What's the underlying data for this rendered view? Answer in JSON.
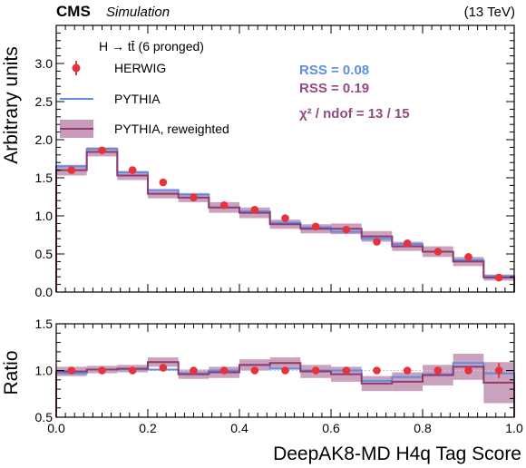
{
  "chart_data": {
    "type": "step-histogram-with-ratio",
    "header": {
      "experiment": "CMS",
      "tag": "Simulation",
      "energy": "(13 TeV)"
    },
    "legend": {
      "title": "H → tt̄ (6 pronged)",
      "entries": [
        "HERWIG",
        "PYTHIA",
        "PYTHIA, reweighted"
      ],
      "placement": "top-left"
    },
    "stats": {
      "rss_pythia": "RSS = 0.08",
      "rss_reweighted": "RSS = 0.19",
      "chi2": "χ² / ndof = 13 / 15"
    },
    "xlabel": "DeepAK8-MD H4q Tag Score",
    "ylabel_main": "Arbitrary units",
    "ylabel_ratio": "Ratio",
    "xlim": [
      0,
      1
    ],
    "ylim_main": [
      0,
      3.5
    ],
    "ylim_ratio": [
      0.5,
      1.5
    ],
    "x_ticks": [
      "0.0",
      "0.2",
      "0.4",
      "0.6",
      "0.8",
      "1.0"
    ],
    "y_ticks_main": [
      "0.0",
      "0.5",
      "1.0",
      "1.5",
      "2.0",
      "2.5",
      "3.0"
    ],
    "y_ticks_ratio": [
      "0.5",
      "1.0",
      "1.5"
    ],
    "bin_edges": [
      0,
      0.0667,
      0.1333,
      0.2,
      0.2667,
      0.3333,
      0.4,
      0.4667,
      0.5333,
      0.6,
      0.6667,
      0.7333,
      0.8,
      0.8667,
      0.9333,
      1.0
    ],
    "herwig": {
      "values": [
        1.6,
        1.86,
        1.6,
        1.44,
        1.24,
        1.14,
        1.08,
        0.97,
        0.86,
        0.82,
        0.66,
        0.64,
        0.53,
        0.46,
        0.19
      ],
      "errors": [
        0.04,
        0.04,
        0.03,
        0.03,
        0.03,
        0.03,
        0.03,
        0.03,
        0.03,
        0.03,
        0.03,
        0.03,
        0.03,
        0.03,
        0.02
      ]
    },
    "pythia": {
      "values": [
        1.65,
        1.88,
        1.57,
        1.34,
        1.28,
        1.11,
        1.06,
        0.91,
        0.85,
        0.79,
        0.7,
        0.63,
        0.53,
        0.42,
        0.21
      ]
    },
    "pythia_reweighted": {
      "values": [
        1.6,
        1.84,
        1.53,
        1.29,
        1.24,
        1.11,
        1.04,
        0.89,
        0.83,
        0.83,
        0.73,
        0.6,
        0.53,
        0.4,
        0.19
      ],
      "band_halfwidth": [
        0.07,
        0.06,
        0.06,
        0.06,
        0.06,
        0.07,
        0.07,
        0.06,
        0.06,
        0.07,
        0.07,
        0.06,
        0.07,
        0.06,
        0.04
      ]
    },
    "ratio": {
      "herwig": [
        1.0,
        1.0,
        1.0,
        1.03,
        1.0,
        1.0,
        1.0,
        1.0,
        1.0,
        1.0,
        1.0,
        1.0,
        1.0,
        1.0,
        1.0
      ],
      "herwig_errors": [
        0.02,
        0.02,
        0.02,
        0.02,
        0.02,
        0.02,
        0.02,
        0.02,
        0.02,
        0.03,
        0.03,
        0.03,
        0.04,
        0.04,
        0.08
      ],
      "pythia": [
        0.97,
        1.01,
        1.01,
        1.01,
        0.97,
        1.0,
        1.06,
        1.02,
        1.0,
        1.0,
        0.89,
        0.93,
        0.96,
        1.08,
        0.97
      ],
      "pythia_reweighted": [
        0.99,
        1.01,
        1.02,
        1.09,
        0.96,
        0.98,
        1.06,
        1.08,
        0.99,
        0.96,
        0.86,
        0.88,
        0.95,
        1.04,
        0.87
      ],
      "band_halfwidth": [
        0.05,
        0.04,
        0.04,
        0.05,
        0.05,
        0.06,
        0.06,
        0.06,
        0.07,
        0.08,
        0.08,
        0.1,
        0.11,
        0.14,
        0.22
      ]
    },
    "colors": {
      "herwig": "#e5323b",
      "pythia": "#5a8ee8",
      "reweighted_line": "#8e3c6e",
      "reweighted_band": "#b57aa3",
      "rss_pythia_text": "#5a8ee8",
      "rss_reweighted_text": "#954a83"
    }
  }
}
